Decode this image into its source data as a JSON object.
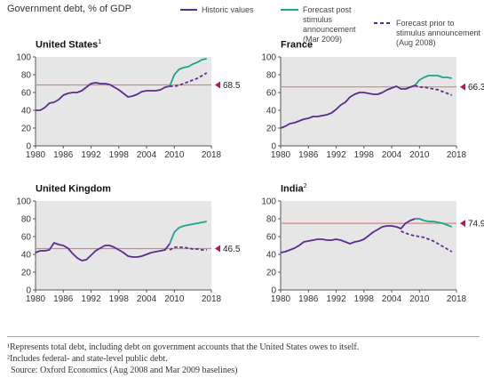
{
  "title": "Government debt, % of GDP",
  "legend": [
    {
      "label": "Historic values",
      "color": "#5b2c8c",
      "style": "solid"
    },
    {
      "label": "Forecast post stimulus announcement (Mar 2009)",
      "color": "#1aa58f",
      "style": "solid"
    },
    {
      "label": "Forecast prior to stimulus announcement (Aug 2008)",
      "color": "#5b2c8c",
      "style": "dashed"
    }
  ],
  "colors": {
    "historic": "#5b2c8c",
    "post": "#1aa58f",
    "prior": "#5b2c8c",
    "reference": "#e08080",
    "grid_bg": "#e6e6e6",
    "marker": "#c0143c"
  },
  "footnotes": [
    "¹Represents total debt, including debt on government accounts that the United States owes to itself.",
    "²Includes federal- and state-level public debt.",
    "Source: Oxford Economics (Aug 2008 and Mar 2009 baselines)"
  ],
  "chart_data": [
    {
      "type": "line",
      "title": "United States",
      "title_sup": "1",
      "xlim": [
        1980,
        2018
      ],
      "ylim": [
        0,
        100
      ],
      "xticks": [
        1980,
        1986,
        1992,
        1998,
        2004,
        2010,
        2018
      ],
      "yticks": [
        0,
        20,
        40,
        60,
        80,
        100
      ],
      "reference": {
        "value": 68.5,
        "label": "68.5"
      },
      "series": [
        {
          "key": "historic",
          "x": [
            1980,
            1981,
            1982,
            1983,
            1984,
            1985,
            1986,
            1987,
            1988,
            1989,
            1990,
            1991,
            1992,
            1993,
            1994,
            1995,
            1996,
            1997,
            1998,
            1999,
            2000,
            2001,
            2002,
            2003,
            2004,
            2005,
            2006,
            2007,
            2008,
            2009
          ],
          "y": [
            40,
            40,
            43,
            48,
            49,
            52,
            57,
            59,
            60,
            60,
            62,
            66,
            70,
            71,
            70,
            70,
            69,
            66,
            63,
            59,
            55,
            56,
            58,
            61,
            62,
            62,
            62,
            63,
            66,
            67
          ]
        },
        {
          "key": "post",
          "x": [
            2009,
            2010,
            2011,
            2012,
            2013,
            2014,
            2015,
            2016,
            2017
          ],
          "y": [
            67,
            80,
            86,
            88,
            89,
            92,
            94,
            97,
            98
          ]
        },
        {
          "key": "prior",
          "x": [
            2009,
            2010,
            2011,
            2012,
            2013,
            2014,
            2015,
            2016,
            2017
          ],
          "y": [
            67,
            67,
            68,
            70,
            72,
            74,
            76,
            79,
            82
          ]
        }
      ]
    },
    {
      "type": "line",
      "title": "France",
      "title_sup": "",
      "xlim": [
        1980,
        2018
      ],
      "ylim": [
        0,
        100
      ],
      "xticks": [
        1980,
        1986,
        1992,
        1998,
        2004,
        2010,
        2018
      ],
      "yticks": [
        0,
        20,
        40,
        60,
        80,
        100
      ],
      "reference": {
        "value": 66.3,
        "label": "66.3"
      },
      "series": [
        {
          "key": "historic",
          "x": [
            1980,
            1981,
            1982,
            1983,
            1984,
            1985,
            1986,
            1987,
            1988,
            1989,
            1990,
            1991,
            1992,
            1993,
            1994,
            1995,
            1996,
            1997,
            1998,
            1999,
            2000,
            2001,
            2002,
            2003,
            2004,
            2005,
            2006,
            2007,
            2008,
            2009
          ],
          "y": [
            20,
            22,
            25,
            26,
            28,
            30,
            31,
            33,
            33,
            34,
            35,
            37,
            41,
            46,
            49,
            55,
            58,
            60,
            60,
            59,
            58,
            58,
            60,
            63,
            65,
            67,
            64,
            64,
            66,
            68
          ]
        },
        {
          "key": "post",
          "x": [
            2009,
            2010,
            2011,
            2012,
            2013,
            2014,
            2015,
            2016,
            2017
          ],
          "y": [
            68,
            74,
            77,
            79,
            79,
            79,
            77,
            77,
            76
          ]
        },
        {
          "key": "prior",
          "x": [
            2009,
            2010,
            2011,
            2012,
            2013,
            2014,
            2015,
            2016,
            2017
          ],
          "y": [
            68,
            66,
            66,
            65,
            64,
            63,
            61,
            59,
            57
          ]
        }
      ]
    },
    {
      "type": "line",
      "title": "United Kingdom",
      "title_sup": "",
      "xlim": [
        1980,
        2018
      ],
      "ylim": [
        0,
        100
      ],
      "xticks": [
        1980,
        1986,
        1992,
        1998,
        2004,
        2010,
        2018
      ],
      "yticks": [
        0,
        20,
        40,
        60,
        80,
        100
      ],
      "reference": {
        "value": 46.5,
        "label": "46.5"
      },
      "series": [
        {
          "key": "historic",
          "x": [
            1980,
            1981,
            1982,
            1983,
            1984,
            1985,
            1986,
            1987,
            1988,
            1989,
            1990,
            1991,
            1992,
            1993,
            1994,
            1995,
            1996,
            1997,
            1998,
            1999,
            2000,
            2001,
            2002,
            2003,
            2004,
            2005,
            2006,
            2007,
            2008,
            2009
          ],
          "y": [
            42,
            44,
            44,
            45,
            53,
            51,
            50,
            47,
            41,
            36,
            33,
            34,
            39,
            44,
            47,
            50,
            50,
            48,
            45,
            42,
            38,
            37,
            37,
            38,
            40,
            42,
            43,
            44,
            45,
            52
          ]
        },
        {
          "key": "post",
          "x": [
            2009,
            2010,
            2011,
            2012,
            2013,
            2014,
            2015,
            2016,
            2017
          ],
          "y": [
            52,
            65,
            70,
            72,
            73,
            74,
            75,
            76,
            77
          ]
        },
        {
          "key": "prior",
          "x": [
            2009,
            2010,
            2011,
            2012,
            2013,
            2014,
            2015,
            2016,
            2017
          ],
          "y": [
            45,
            48,
            48,
            48,
            47,
            46,
            46,
            45,
            45
          ]
        }
      ]
    },
    {
      "type": "line",
      "title": "India",
      "title_sup": "2",
      "xlim": [
        1980,
        2018
      ],
      "ylim": [
        0,
        100
      ],
      "xticks": [
        1980,
        1986,
        1992,
        1998,
        2004,
        2010,
        2018
      ],
      "yticks": [
        0,
        20,
        40,
        60,
        80,
        100
      ],
      "reference": {
        "value": 74.9,
        "label": "74.9"
      },
      "series": [
        {
          "key": "historic",
          "x": [
            1980,
            1981,
            1982,
            1983,
            1984,
            1985,
            1986,
            1987,
            1988,
            1989,
            1990,
            1991,
            1992,
            1993,
            1994,
            1995,
            1996,
            1997,
            1998,
            1999,
            2000,
            2001,
            2002,
            2003,
            2004,
            2005,
            2006,
            2007,
            2008,
            2009
          ],
          "y": [
            42,
            43,
            45,
            47,
            50,
            54,
            55,
            56,
            57,
            57,
            56,
            56,
            57,
            56,
            54,
            52,
            54,
            55,
            57,
            61,
            65,
            68,
            71,
            72,
            72,
            71,
            69,
            75,
            78,
            80
          ]
        },
        {
          "key": "post",
          "x": [
            2009,
            2010,
            2011,
            2012,
            2013,
            2014,
            2015,
            2016,
            2017
          ],
          "y": [
            80,
            80,
            78,
            77,
            77,
            76,
            75,
            73,
            71
          ]
        },
        {
          "key": "prior",
          "x": [
            2006,
            2007,
            2008,
            2009,
            2010,
            2011,
            2012,
            2013,
            2014,
            2015,
            2016,
            2017
          ],
          "y": [
            66,
            64,
            62,
            61,
            60,
            59,
            57,
            55,
            52,
            49,
            46,
            43
          ]
        }
      ]
    }
  ]
}
